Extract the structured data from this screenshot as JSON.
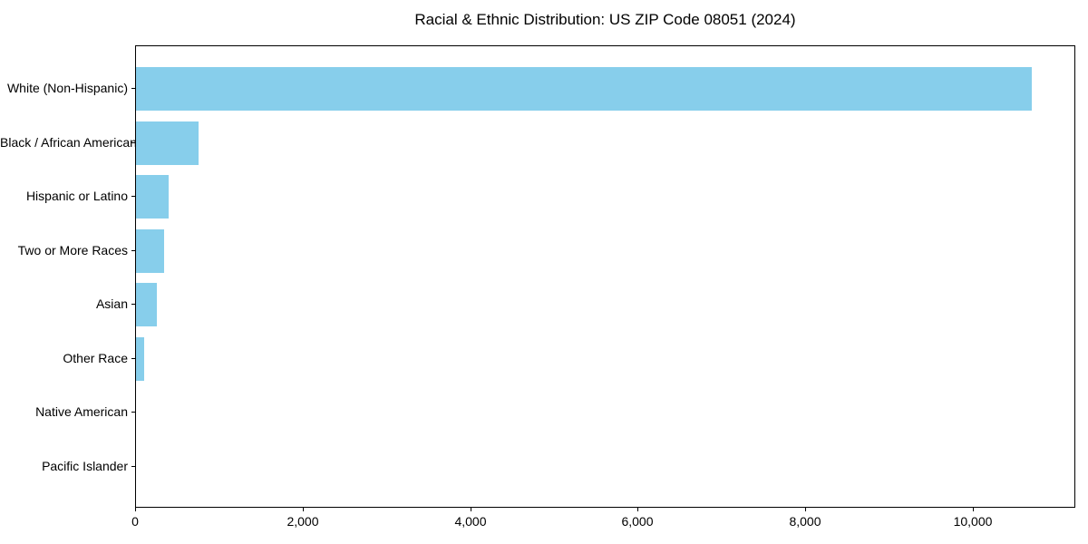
{
  "figure": {
    "background": "#ffffff"
  },
  "chart_data": {
    "type": "bar",
    "orientation": "horizontal",
    "title": "Racial & Ethnic Distribution: US ZIP Code 08051 (2024)",
    "categories": [
      "White (Non-Hispanic)",
      "Black / African American",
      "Hispanic or Latino",
      "Two or More Races",
      "Asian",
      "Other Race",
      "Native American",
      "Pacific Islander"
    ],
    "values": [
      10690,
      745,
      390,
      338,
      248,
      100,
      0,
      0
    ],
    "xlabel": "",
    "ylabel": "",
    "xlim": [
      0,
      11224
    ],
    "xticks": [
      0,
      2000,
      4000,
      6000,
      8000,
      10000
    ],
    "xtick_labels": [
      "0",
      "2,000",
      "4,000",
      "6,000",
      "8,000",
      "10,000"
    ],
    "bar_color": "#87CEEB",
    "axis_color": "#000000",
    "text_color": "#000000",
    "grid": false,
    "legend": null
  }
}
